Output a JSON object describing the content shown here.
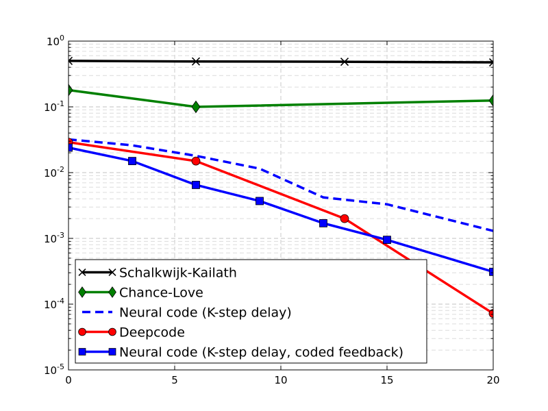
{
  "chart_data": {
    "type": "line",
    "title": "",
    "xlabel": "",
    "ylabel": "",
    "xlim": [
      0,
      20
    ],
    "ylim": [
      1e-05,
      1
    ],
    "yscale": "log",
    "grid": true,
    "legend_position": "lower-left",
    "x_ticks": [
      {
        "value": 0,
        "label": "0"
      },
      {
        "value": 5,
        "label": "5"
      },
      {
        "value": 10,
        "label": "10"
      },
      {
        "value": 15,
        "label": "15"
      },
      {
        "value": 20,
        "label": "20"
      }
    ],
    "y_ticks": [
      {
        "value": 1,
        "base": "10",
        "exp": "0"
      },
      {
        "value": 0.1,
        "base": "10",
        "exp": "-1"
      },
      {
        "value": 0.01,
        "base": "10",
        "exp": "-2"
      },
      {
        "value": 0.001,
        "base": "10",
        "exp": "-3"
      },
      {
        "value": 0.0001,
        "base": "10",
        "exp": "-4"
      },
      {
        "value": 1e-05,
        "base": "10",
        "exp": "-5"
      }
    ],
    "series": [
      {
        "name": "Schalkwijk-Kailath",
        "color": "#000000",
        "dash": "solid",
        "marker": "x",
        "x": [
          0,
          6,
          13,
          20
        ],
        "y": [
          0.5,
          0.49,
          0.485,
          0.475
        ]
      },
      {
        "name": "Chance-Love",
        "color": "#008000",
        "dash": "solid",
        "marker": "diamond",
        "x": [
          0,
          6,
          20
        ],
        "y": [
          0.18,
          0.1,
          0.125
        ]
      },
      {
        "name": "Neural code (K-step delay)",
        "color": "#0000ff",
        "dash": "dashed",
        "marker": "none",
        "x": [
          0,
          3,
          6,
          9,
          12,
          15,
          20
        ],
        "y": [
          0.032,
          0.026,
          0.018,
          0.0115,
          0.0042,
          0.0033,
          0.0013
        ]
      },
      {
        "name": "Deepcode",
        "color": "#ff0000",
        "dash": "solid",
        "marker": "circle",
        "x": [
          0,
          6,
          13,
          20
        ],
        "y": [
          0.029,
          0.015,
          0.002,
          7.2e-05
        ]
      },
      {
        "name": "Neural code (K-step delay, coded feedback)",
        "color": "#0000ff",
        "dash": "solid",
        "marker": "square",
        "x": [
          0,
          3,
          6,
          9,
          12,
          15,
          20
        ],
        "y": [
          0.024,
          0.015,
          0.0065,
          0.0037,
          0.0017,
          0.00095,
          0.00031
        ]
      }
    ]
  }
}
